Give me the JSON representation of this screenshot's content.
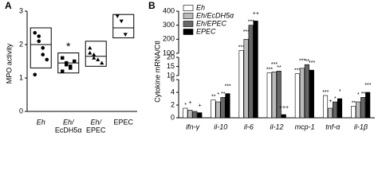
{
  "chart_data": [
    {
      "type": "box",
      "panel": "A",
      "ylabel": "MPO activity",
      "categories": [
        [
          "Eh"
        ],
        [
          "Eh/",
          "EcDH5α"
        ],
        [
          "Eh/",
          "EPEC"
        ],
        [
          "EPEC"
        ]
      ],
      "ylim": [
        0,
        3
      ],
      "yticks": [
        0,
        1,
        2,
        3
      ],
      "boxes": [
        {
          "q1": 1.3,
          "median": 2.0,
          "q3": 2.5
        },
        {
          "q1": 1.15,
          "median": 1.45,
          "q3": 1.75
        },
        {
          "q1": 1.35,
          "median": 1.65,
          "q3": 2.1
        },
        {
          "q1": 2.2,
          "median": 2.5,
          "q3": 2.9
        }
      ],
      "points": [
        [
          2.35,
          2.1,
          1.9,
          1.55,
          1.1,
          2.25,
          1.7
        ],
        [
          1.6,
          1.4,
          1.3,
          1.5,
          1.2,
          1.45,
          1.35
        ],
        [
          1.9,
          1.7,
          1.55,
          1.45,
          1.75,
          1.6
        ],
        [
          2.85,
          2.7,
          2.3
        ]
      ],
      "markers": [
        "circle",
        "square",
        "triangle",
        "down-triangle"
      ],
      "annotations": [
        null,
        "*",
        null,
        null
      ]
    },
    {
      "type": "broken-bar",
      "panel": "B",
      "ylabel": "Cytokine mRNA/Ctl",
      "categories": [
        "ifn-γ",
        "il-10",
        "il-6",
        "il-12",
        "mcp-1",
        "tnf-α",
        "il-1β"
      ],
      "segments": [
        {
          "ylim": [
            0,
            6
          ],
          "yticks": [
            0,
            2,
            4,
            6
          ]
        },
        {
          "ylim": [
            10,
            20
          ],
          "yticks": [
            10,
            15,
            20
          ]
        },
        {
          "ylim": [
            100,
            400
          ],
          "yticks": [
            100,
            200,
            300,
            400
          ]
        }
      ],
      "series": [
        {
          "name": "Eh",
          "color": "#ffffff",
          "values": [
            1.5,
            2.8,
            120,
            11.5,
            11,
            3.5,
            1.8
          ],
          "sig": [
            "*",
            "**",
            "***",
            "***",
            "***",
            "***",
            "**"
          ]
        },
        {
          "name": "Eh/EcDH5α",
          "color": "#bbbbbb",
          "values": [
            1.2,
            2.5,
            200,
            12,
            14,
            1.5,
            2.5
          ],
          "sig": [
            "+",
            "*",
            "***",
            "***",
            "***",
            "+",
            "*"
          ]
        },
        {
          "name": "Eh/EPEC",
          "color": "#666666",
          "values": [
            1.0,
            3.2,
            300,
            12.5,
            16,
            2.5,
            3.2
          ],
          "sig": [
            null,
            "**",
            "***",
            "**",
            "**",
            "*",
            "**"
          ]
        },
        {
          "name": "EPEC",
          "color": "#000000",
          "values": [
            0.8,
            3.8,
            330,
            0.5,
            13,
            3.0,
            4.0
          ],
          "sig": [
            "+",
            "***",
            "++",
            "+++",
            "***",
            "*",
            "***"
          ]
        }
      ]
    }
  ]
}
